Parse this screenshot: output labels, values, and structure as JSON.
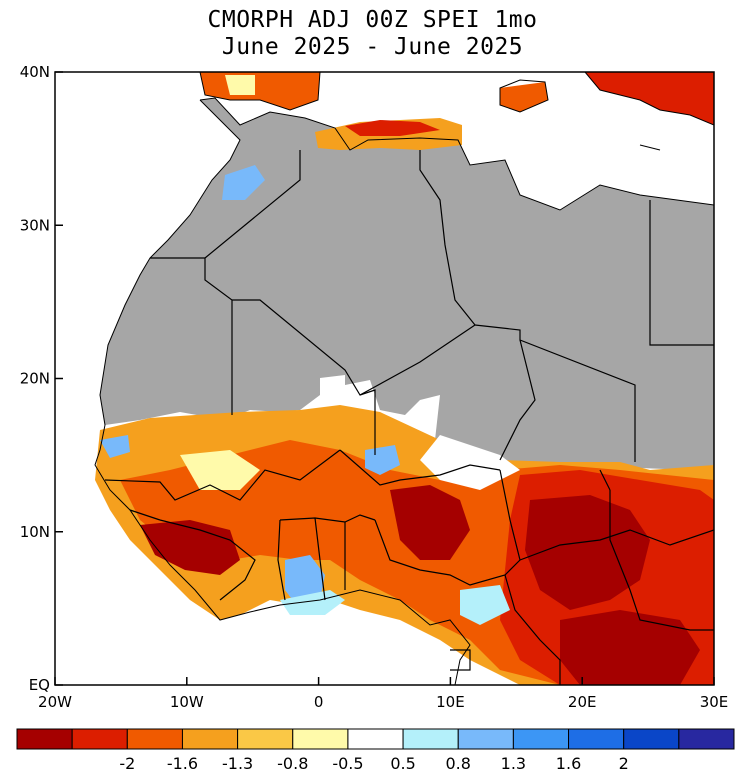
{
  "title": {
    "line1": "CMORPH ADJ 00Z SPEI 1mo",
    "line2": "June 2025 - June 2025"
  },
  "map": {
    "lon_range": [
      -20,
      30
    ],
    "lat_range": [
      0,
      40
    ],
    "x_ticks": [
      {
        "lon": -20,
        "label": "20W"
      },
      {
        "lon": -10,
        "label": "10W"
      },
      {
        "lon": 0,
        "label": "0"
      },
      {
        "lon": 10,
        "label": "10E"
      },
      {
        "lon": 20,
        "label": "20E"
      },
      {
        "lon": 30,
        "label": "30E"
      }
    ],
    "y_ticks": [
      {
        "lat": 40,
        "label": "40N"
      },
      {
        "lat": 30,
        "label": "30N"
      },
      {
        "lat": 20,
        "label": "20N"
      },
      {
        "lat": 10,
        "label": "10N"
      },
      {
        "lat": 0,
        "label": "EQ"
      }
    ],
    "colors": {
      "ocean": "#ffffff",
      "dry_mask": "#a6a6a6",
      "borders": "#000000"
    }
  },
  "legend": {
    "colors": [
      "#a50000",
      "#dc1e00",
      "#f05a00",
      "#f5a01e",
      "#fac846",
      "#fffaaa",
      "#ffffff",
      "#b4f0fa",
      "#78b9fa",
      "#3c96f5",
      "#1e6ee6",
      "#0a46c8",
      "#2828a0"
    ],
    "labels": [
      "-2",
      "-1.6",
      "-1.3",
      "-0.8",
      "-0.5",
      "0.5",
      "0.8",
      "1.3",
      "1.6",
      "2"
    ]
  }
}
